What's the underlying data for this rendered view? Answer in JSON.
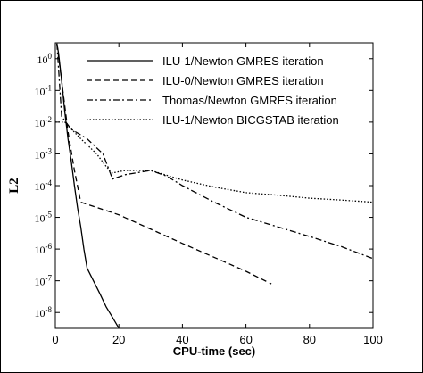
{
  "chart_data": {
    "type": "line",
    "xlabel": "CPU-time (sec)",
    "ylabel": "L2",
    "xlim": [
      0,
      100
    ],
    "xticks": [
      0,
      20,
      40,
      60,
      80,
      100
    ],
    "ylim": [
      3.16e-09,
      3.16
    ],
    "log_y": true,
    "yticks": [
      {
        "value": 1,
        "label": "10^0"
      },
      {
        "value": 0.1,
        "label": "10^-1"
      },
      {
        "value": 0.01,
        "label": "10^-2"
      },
      {
        "value": 0.001,
        "label": "10^-3"
      },
      {
        "value": 0.0001,
        "label": "10^-4"
      },
      {
        "value": 1e-05,
        "label": "10^-5"
      },
      {
        "value": 1e-06,
        "label": "10^-6"
      },
      {
        "value": 1e-07,
        "label": "10^-7"
      },
      {
        "value": 1e-08,
        "label": "10^-8"
      }
    ],
    "legend": "top-right",
    "series": [
      {
        "name": "ILU-1/Newton GMRES iteration",
        "color": "#000000",
        "dash": "solid",
        "x": [
          0.5,
          1,
          2,
          3,
          4,
          5,
          6,
          7,
          8,
          9,
          10,
          12,
          14,
          16,
          18,
          20
        ],
        "values": [
          3,
          1.5,
          0.2,
          0.02,
          0.003,
          0.0006,
          0.0001,
          2e-05,
          5e-06,
          1e-06,
          2.5e-07,
          1e-07,
          4e-08,
          1.5e-08,
          7e-09,
          3.2e-09
        ]
      },
      {
        "name": "ILU-0/Newton GMRES iteration",
        "color": "#000000",
        "dash": "dashed",
        "x": [
          0.5,
          2,
          4,
          6,
          8,
          20,
          40,
          60,
          68
        ],
        "values": [
          3,
          0.2,
          0.005,
          0.0003,
          3e-05,
          1.2e-05,
          1.5e-06,
          2e-07,
          8e-08
        ]
      },
      {
        "name": "Thomas/Newton GMRES iteration",
        "color": "#000000",
        "dash": "dashdot",
        "x": [
          0.5,
          2,
          5,
          10,
          15,
          18,
          22,
          30,
          35,
          40,
          50,
          60,
          70,
          80,
          90,
          100
        ],
        "values": [
          3,
          0.015,
          0.006,
          0.003,
          0.001,
          0.00016,
          0.00022,
          0.0003,
          0.0002,
          0.0001,
          3e-05,
          1e-05,
          5e-06,
          2.5e-06,
          1.2e-06,
          5e-07
        ]
      },
      {
        "name": "ILU-1/Newton BICGSTAB iteration",
        "color": "#000000",
        "dash": "dotted",
        "x": [
          0,
          3,
          8,
          13,
          16,
          18,
          22,
          30,
          40,
          50,
          60,
          70,
          80,
          90,
          100
        ],
        "values": [
          0.01,
          0.01,
          0.003,
          0.001,
          0.0004,
          0.00025,
          0.0003,
          0.0003,
          0.00015,
          9e-05,
          6e-05,
          5e-05,
          4e-05,
          3.5e-05,
          3e-05
        ]
      }
    ]
  }
}
